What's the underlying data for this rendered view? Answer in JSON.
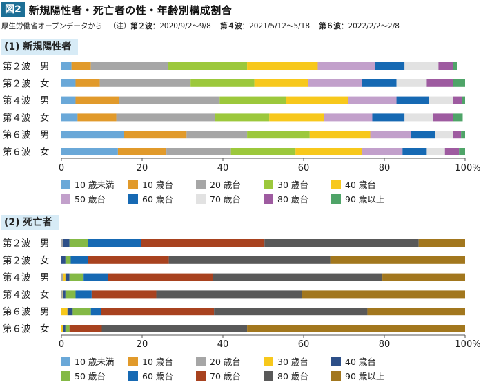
{
  "figure": {
    "badge": "図2",
    "title": "新規陽性者・死亡者の性・年齢別構成割合",
    "source": "厚生労働省オープンデータから",
    "note_prefix": "（注）",
    "waves_note": [
      {
        "label": "第２波",
        "range": "2020/9/2〜9/8"
      },
      {
        "label": "第４波",
        "range": "2021/5/12〜5/18"
      },
      {
        "label": "第６波",
        "range": "2022/2/2〜2/8"
      }
    ]
  },
  "chart_data": [
    {
      "type": "bar",
      "orientation": "horizontal",
      "stacked": true,
      "title": "(1) 新規陽性者",
      "categories": [
        "第２波　男",
        "第２波　女",
        "第４波　男",
        "第４波　女",
        "第６波　男",
        "第６波　女"
      ],
      "xlim": [
        0,
        100
      ],
      "x_ticks": [
        "0",
        "20",
        "40",
        "60",
        "80",
        "100%"
      ],
      "series": [
        {
          "name": "10歳未満",
          "color": "#6aa8d8",
          "values": [
            2.5,
            3.5,
            3.5,
            4.0,
            15.5,
            14.0
          ]
        },
        {
          "name": "10歳台",
          "color": "#e19a2b",
          "values": [
            4.8,
            6.0,
            10.7,
            9.6,
            15.5,
            12.0
          ]
        },
        {
          "name": "20歳台",
          "color": "#a6a6a6",
          "values": [
            19.2,
            22.5,
            25.0,
            24.4,
            15.0,
            16.0
          ]
        },
        {
          "name": "30歳台",
          "color": "#9cc83c",
          "values": [
            19.5,
            15.8,
            16.5,
            13.5,
            15.5,
            16.0
          ]
        },
        {
          "name": "40歳台",
          "color": "#f7c81c",
          "values": [
            17.5,
            13.4,
            15.3,
            13.5,
            15.0,
            16.5
          ]
        },
        {
          "name": "50歳台",
          "color": "#c2a0cb",
          "values": [
            14.2,
            13.3,
            12.0,
            12.0,
            10.0,
            10.0
          ]
        },
        {
          "name": "60歳台",
          "color": "#1669b3",
          "values": [
            7.3,
            8.5,
            8.0,
            8.0,
            6.0,
            6.0
          ]
        },
        {
          "name": "70歳台",
          "color": "#e2e2e2",
          "values": [
            8.4,
            7.5,
            6.0,
            7.0,
            4.5,
            4.5
          ]
        },
        {
          "name": "80歳台",
          "color": "#9e5ba0",
          "values": [
            3.6,
            6.5,
            2.3,
            5.0,
            2.0,
            3.5
          ]
        },
        {
          "name": "90歳以上",
          "color": "#4fa468",
          "values": [
            1.0,
            3.0,
            0.7,
            2.4,
            1.0,
            1.5
          ]
        }
      ],
      "legend": [
        [
          "10 歳未満",
          "10 歳台",
          "20 歳台",
          "30 歳台",
          "40 歳台"
        ],
        [
          "50 歳台",
          "60 歳台",
          "70 歳台",
          "80 歳台",
          "90 歳以上"
        ]
      ]
    },
    {
      "type": "bar",
      "orientation": "horizontal",
      "stacked": true,
      "title": "(2) 死亡者",
      "categories": [
        "第２波　男",
        "第２波　女",
        "第４波　男",
        "第４波　女",
        "第６波　男",
        "第６波　女"
      ],
      "xlim": [
        0,
        100
      ],
      "x_ticks": [
        "0",
        "20",
        "40",
        "60",
        "80",
        "100%"
      ],
      "series": [
        {
          "name": "10歳未満",
          "color": "#6aa8d8",
          "values": [
            0,
            0,
            0,
            0,
            0,
            0
          ]
        },
        {
          "name": "10歳台",
          "color": "#e19a2b",
          "values": [
            0,
            0,
            0,
            0,
            0,
            0
          ]
        },
        {
          "name": "20歳台",
          "color": "#a6a6a6",
          "values": [
            0.5,
            0,
            0.5,
            0.3,
            0,
            0
          ]
        },
        {
          "name": "30歳台",
          "color": "#f7c81c",
          "values": [
            0,
            0,
            0.5,
            0.2,
            1.5,
            0.5
          ]
        },
        {
          "name": "40歳台",
          "color": "#2d4f88",
          "values": [
            1.5,
            1.0,
            1.0,
            0.5,
            1.3,
            0.5
          ]
        },
        {
          "name": "50歳台",
          "color": "#84b946",
          "values": [
            4.6,
            1.3,
            3.5,
            2.5,
            4.5,
            1.0
          ]
        },
        {
          "name": "60歳台",
          "color": "#1669b3",
          "values": [
            13.2,
            4.3,
            6.0,
            4.0,
            2.5,
            0
          ]
        },
        {
          "name": "70歳台",
          "color": "#a8421f",
          "values": [
            30.5,
            20.0,
            26.0,
            16.0,
            28.0,
            8.0
          ]
        },
        {
          "name": "80歳台",
          "color": "#595959",
          "values": [
            38.2,
            40.0,
            42.0,
            36.0,
            38.0,
            36.0
          ]
        },
        {
          "name": "90歳以上",
          "color": "#a2771e",
          "values": [
            11.5,
            33.4,
            20.5,
            40.5,
            24.2,
            54.0
          ]
        }
      ],
      "legend": [
        [
          "10 歳未満",
          "10 歳台",
          "20 歳台",
          "30 歳台",
          "40 歳台"
        ],
        [
          "50 歳台",
          "60 歳台",
          "70 歳台",
          "80 歳台",
          "90 歳以上"
        ]
      ]
    }
  ]
}
